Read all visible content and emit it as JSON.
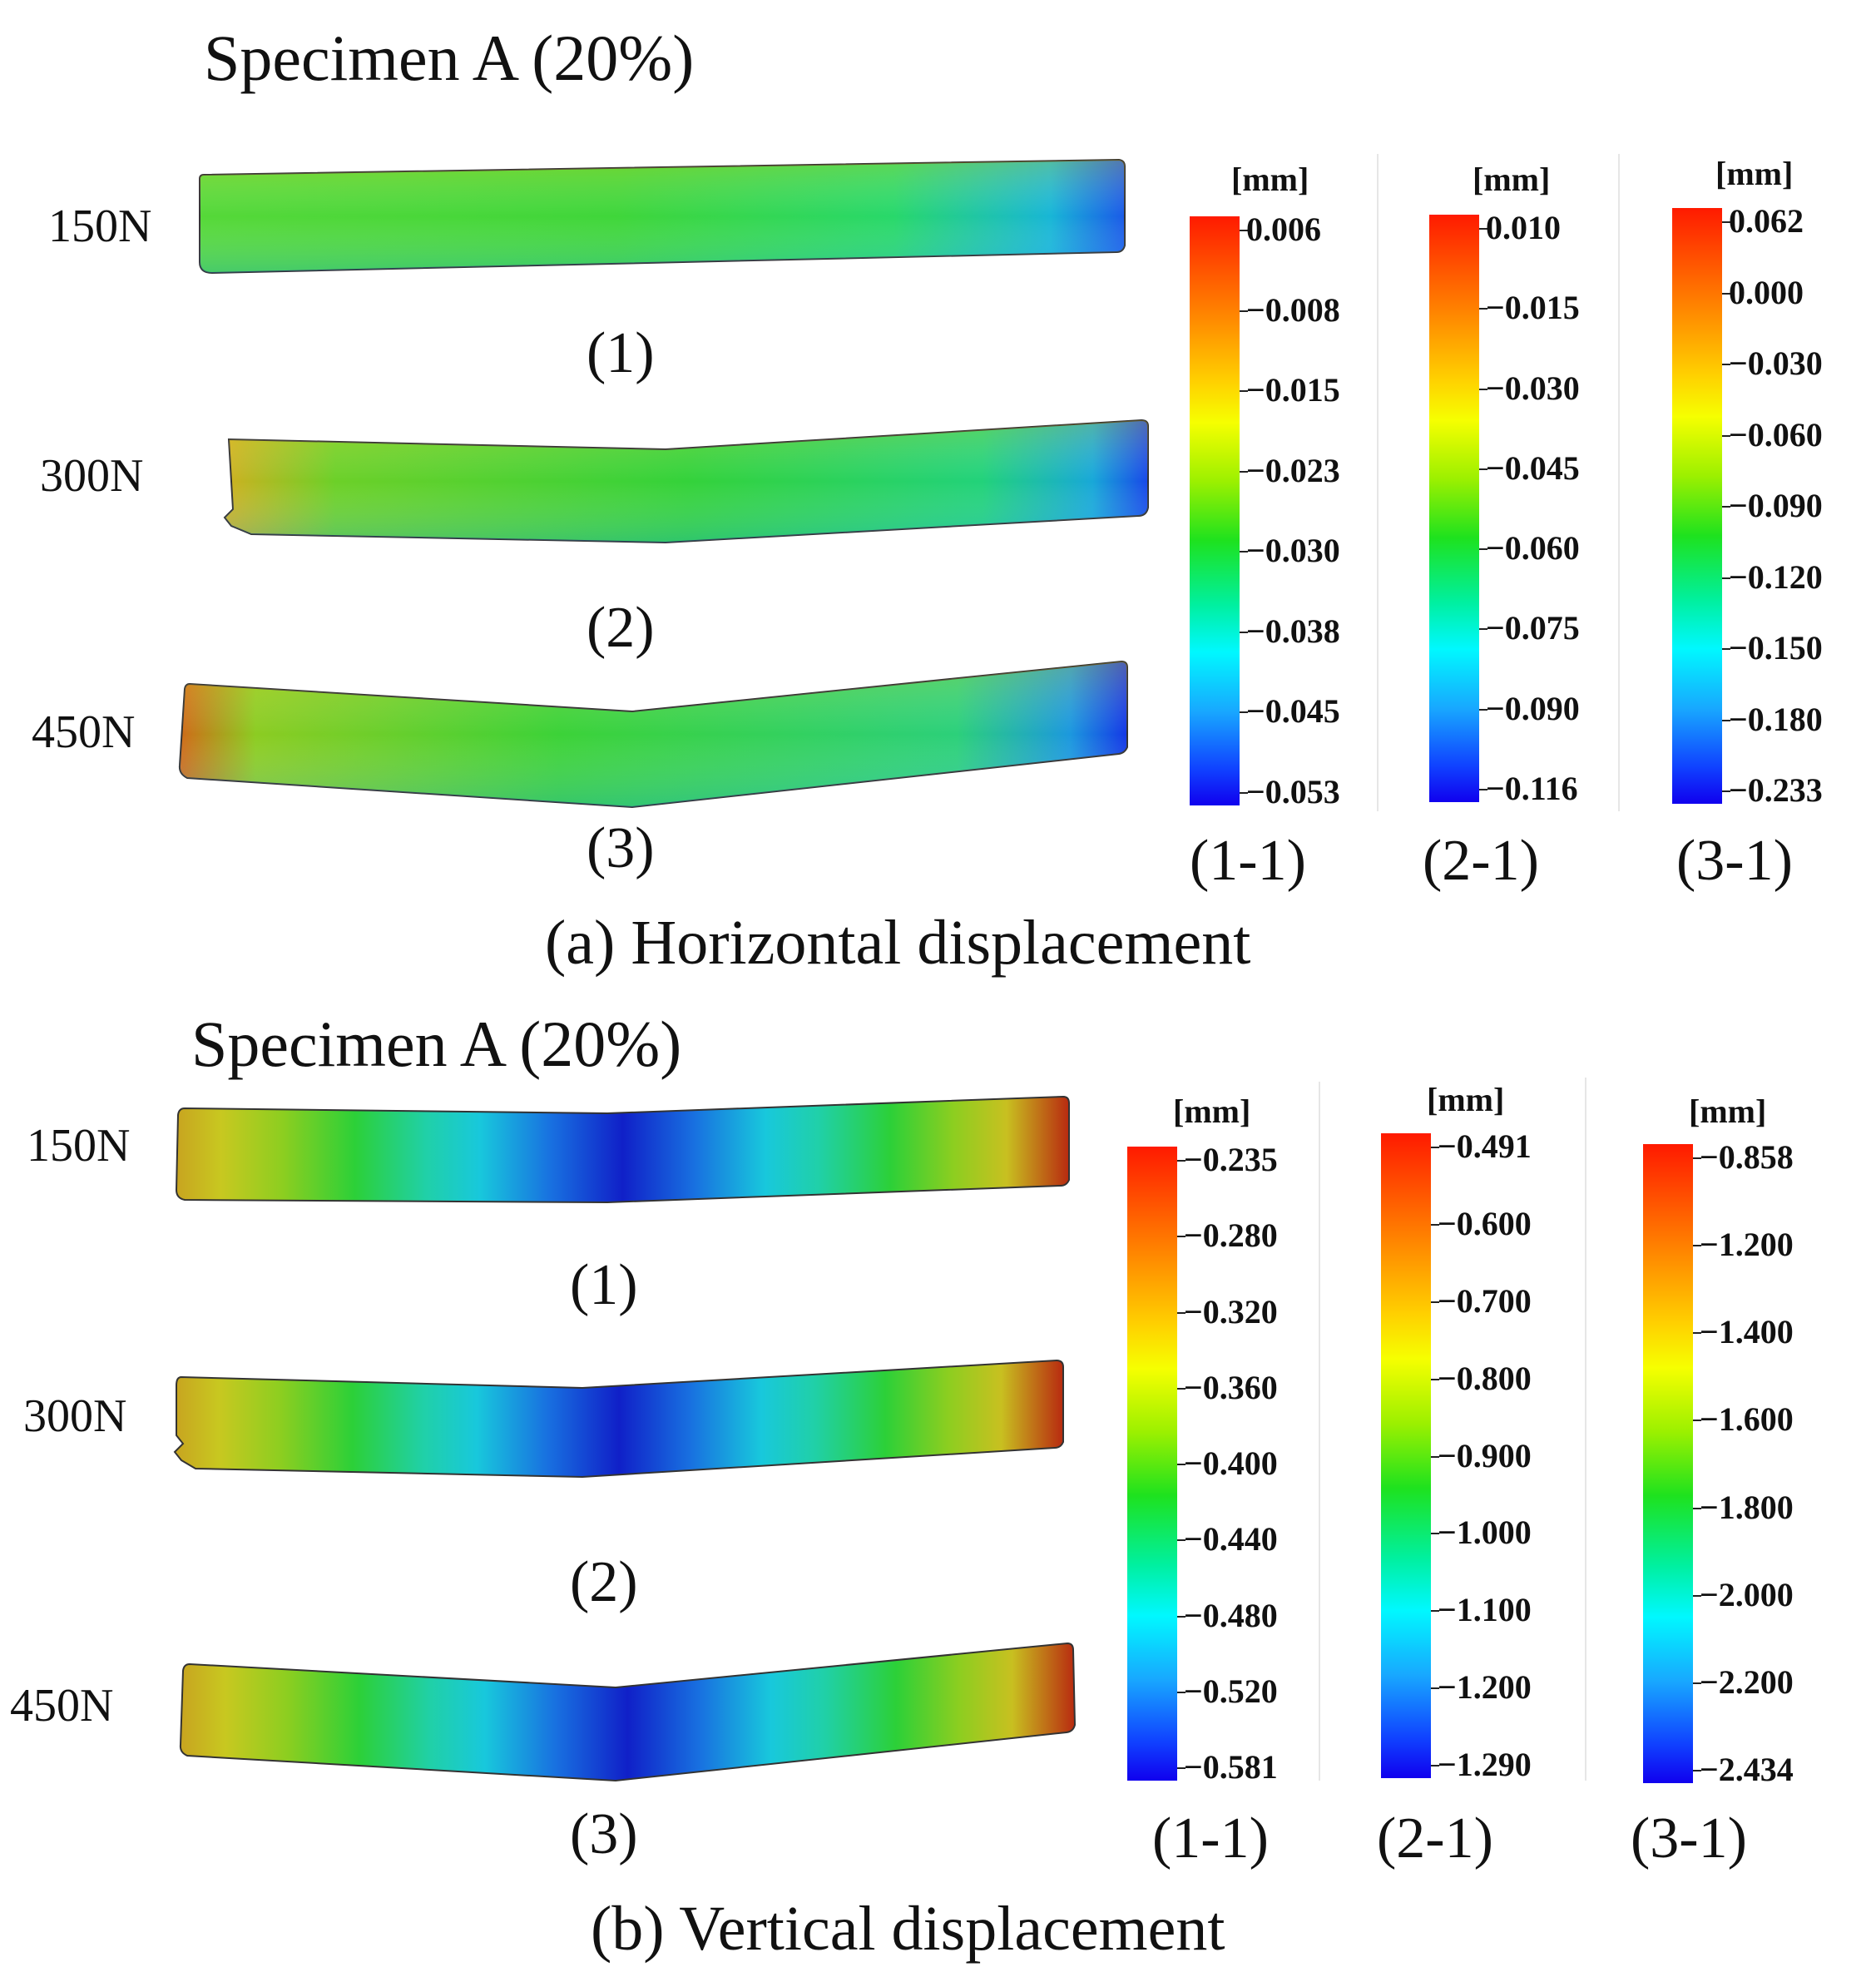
{
  "panels": [
    {
      "title": "Specimen A (20%)",
      "caption": "(a) Horizontal displacement",
      "loads": [
        "150N",
        "300N",
        "450N"
      ],
      "beam_labels": [
        "(1)",
        "(2)",
        "(3)"
      ],
      "scales": [
        {
          "unit": "[mm]",
          "label": "(1-1)",
          "ticks": [
            "0.006",
            "−0.008",
            "−0.015",
            "−0.023",
            "−0.030",
            "−0.038",
            "−0.045",
            "−0.053"
          ]
        },
        {
          "unit": "[mm]",
          "label": "(2-1)",
          "ticks": [
            "0.010",
            "−0.015",
            "−0.030",
            "−0.045",
            "−0.060",
            "−0.075",
            "−0.090",
            "−0.116"
          ]
        },
        {
          "unit": "[mm]",
          "label": "(3-1)",
          "ticks": [
            "0.062",
            "0.000",
            "−0.030",
            "−0.060",
            "−0.090",
            "−0.120",
            "−0.150",
            "−0.180",
            "−0.233"
          ]
        }
      ]
    },
    {
      "title": "Specimen A (20%)",
      "caption": "(b) Vertical displacement",
      "loads": [
        "150N",
        "300N",
        "450N"
      ],
      "beam_labels": [
        "(1)",
        "(2)",
        "(3)"
      ],
      "scales": [
        {
          "unit": "[mm]",
          "label": "(1-1)",
          "ticks": [
            "−0.235",
            "−0.280",
            "−0.320",
            "−0.360",
            "−0.400",
            "−0.440",
            "−0.480",
            "−0.520",
            "−0.581"
          ]
        },
        {
          "unit": "[mm]",
          "label": "(2-1)",
          "ticks": [
            "−0.491",
            "−0.600",
            "−0.700",
            "−0.800",
            "−0.900",
            "−1.000",
            "−1.100",
            "−1.200",
            "−1.290"
          ]
        },
        {
          "unit": "[mm]",
          "label": "(3-1)",
          "ticks": [
            "−0.858",
            "−1.200",
            "−1.400",
            "−1.600",
            "−1.800",
            "−2.000",
            "−2.200",
            "−2.434"
          ]
        }
      ]
    }
  ],
  "chart_data": [
    {
      "type": "heatmap",
      "title": "Specimen A (20%)",
      "caption": "(a) Horizontal displacement",
      "unit": "mm",
      "loads_N": [
        150,
        300,
        450
      ],
      "colorbars": [
        {
          "label": "(1-1)",
          "load_N": 150,
          "min": -0.053,
          "max": 0.006,
          "ticks": [
            0.006,
            -0.008,
            -0.015,
            -0.023,
            -0.03,
            -0.038,
            -0.045,
            -0.053
          ]
        },
        {
          "label": "(2-1)",
          "load_N": 300,
          "min": -0.116,
          "max": 0.01,
          "ticks": [
            0.01,
            -0.015,
            -0.03,
            -0.045,
            -0.06,
            -0.075,
            -0.09,
            -0.116
          ]
        },
        {
          "label": "(3-1)",
          "load_N": 450,
          "min": -0.233,
          "max": 0.062,
          "ticks": [
            0.062,
            0.0,
            -0.03,
            -0.06,
            -0.09,
            -0.12,
            -0.15,
            -0.18,
            -0.233
          ]
        }
      ]
    },
    {
      "type": "heatmap",
      "title": "Specimen A (20%)",
      "caption": "(b) Vertical displacement",
      "unit": "mm",
      "loads_N": [
        150,
        300,
        450
      ],
      "colorbars": [
        {
          "label": "(1-1)",
          "load_N": 150,
          "min": -0.581,
          "max": -0.235,
          "ticks": [
            -0.235,
            -0.28,
            -0.32,
            -0.36,
            -0.4,
            -0.44,
            -0.48,
            -0.52,
            -0.581
          ]
        },
        {
          "label": "(2-1)",
          "load_N": 300,
          "min": -1.29,
          "max": -0.491,
          "ticks": [
            -0.491,
            -0.6,
            -0.7,
            -0.8,
            -0.9,
            -1.0,
            -1.1,
            -1.2,
            -1.29
          ]
        },
        {
          "label": "(3-1)",
          "load_N": 450,
          "min": -2.434,
          "max": -0.858,
          "ticks": [
            -0.858,
            -1.2,
            -1.4,
            -1.6,
            -1.8,
            -2.0,
            -2.2,
            -2.434
          ]
        }
      ]
    }
  ]
}
